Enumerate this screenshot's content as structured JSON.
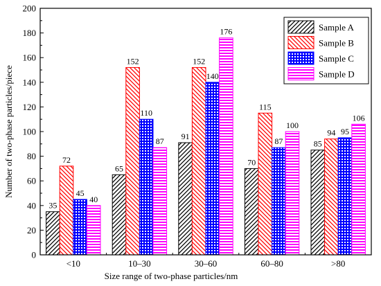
{
  "chart_data": {
    "type": "bar",
    "title": "",
    "xlabel": "Size range of two-phase particles/nm",
    "ylabel": "Number of two-phase particles/piece",
    "categories": [
      "<10",
      "10–30",
      "30–60",
      "60–80",
      ">80"
    ],
    "ylim": [
      0,
      200
    ],
    "yticks": [
      0,
      20,
      40,
      60,
      80,
      100,
      120,
      140,
      160,
      180,
      200
    ],
    "grid": false,
    "legend_position": "top-right",
    "series": [
      {
        "name": "Sample A",
        "values": [
          35,
          65,
          91,
          70,
          85
        ],
        "color": "#000000",
        "pattern": "diagonal-up"
      },
      {
        "name": "Sample B",
        "values": [
          72,
          152,
          152,
          115,
          94
        ],
        "color": "#ff0000",
        "pattern": "diagonal-down"
      },
      {
        "name": "Sample C",
        "values": [
          45,
          110,
          140,
          87,
          95
        ],
        "color": "#0000ff",
        "pattern": "crosshatch"
      },
      {
        "name": "Sample D",
        "values": [
          40,
          87,
          176,
          100,
          106
        ],
        "color": "#ff00ff",
        "pattern": "horizontal-lines"
      }
    ]
  }
}
